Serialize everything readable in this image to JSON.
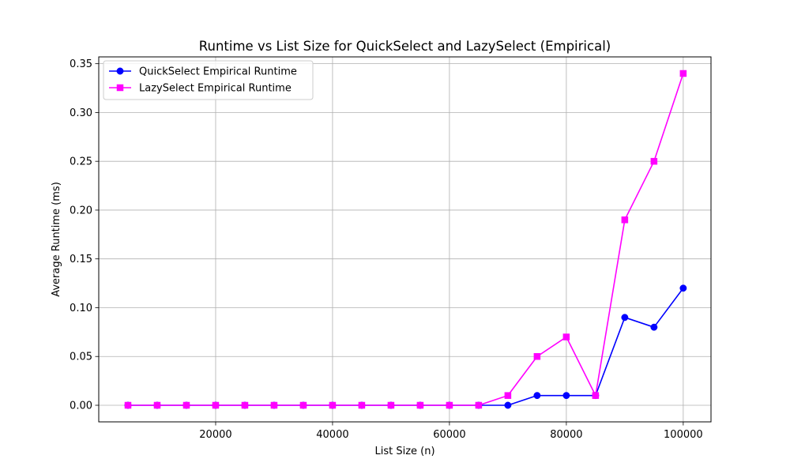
{
  "chart_data": {
    "type": "line",
    "title": "Runtime vs List Size for QuickSelect and LazySelect (Empirical)",
    "xlabel": "List Size (n)",
    "ylabel": "Average Runtime (ms)",
    "xlim": [
      0,
      104750
    ],
    "ylim": [
      -0.017,
      0.357
    ],
    "xticks": [
      20000,
      40000,
      60000,
      80000,
      100000
    ],
    "xtick_labels": [
      "20000",
      "40000",
      "60000",
      "80000",
      "100000"
    ],
    "yticks": [
      0.0,
      0.05,
      0.1,
      0.15,
      0.2,
      0.25,
      0.3,
      0.35
    ],
    "ytick_labels": [
      "0.00",
      "0.05",
      "0.10",
      "0.15",
      "0.20",
      "0.25",
      "0.30",
      "0.35"
    ],
    "grid": true,
    "legend_position": "top-left",
    "x": [
      5000,
      10000,
      15000,
      20000,
      25000,
      30000,
      35000,
      40000,
      45000,
      50000,
      55000,
      60000,
      65000,
      70000,
      75000,
      80000,
      85000,
      90000,
      95000,
      100000
    ],
    "series": [
      {
        "name": "QuickSelect Empirical Runtime",
        "color": "#0000ff",
        "marker": "circle",
        "values": [
          0,
          0,
          0,
          0,
          0,
          0,
          0,
          0,
          0,
          0,
          0,
          0,
          0,
          0,
          0.01,
          0.01,
          0.01,
          0.09,
          0.08,
          0.12
        ]
      },
      {
        "name": "LazySelect Empirical Runtime",
        "color": "#ff00ff",
        "marker": "square",
        "values": [
          0,
          0,
          0,
          0,
          0,
          0,
          0,
          0,
          0,
          0,
          0,
          0,
          0,
          0.01,
          0.05,
          0.07,
          0.01,
          0.19,
          0.25,
          0.34
        ]
      }
    ]
  }
}
